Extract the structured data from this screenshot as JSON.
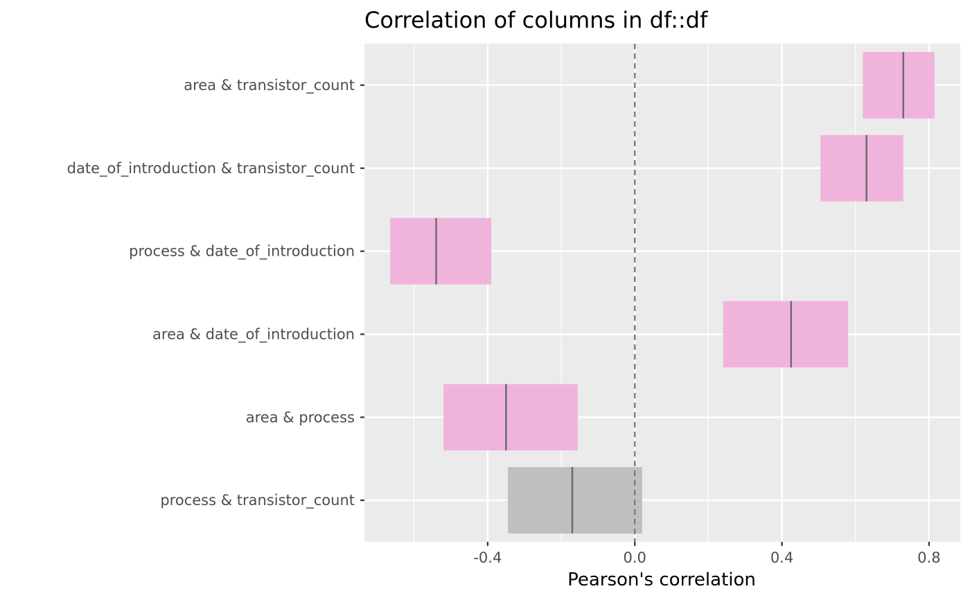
{
  "chart_data": {
    "type": "interval",
    "title": "Correlation of columns in df::df",
    "xlabel": "Pearson's correlation",
    "ylabel": "",
    "xlim": [
      -0.735,
      0.885
    ],
    "x_ticks": [
      -0.4,
      0.0,
      0.4,
      0.8
    ],
    "x_tick_labels": [
      "-0.4",
      "0.0",
      "0.4",
      "0.8"
    ],
    "reference_line": 0.0,
    "grid": true,
    "colors": {
      "panel": "#ebebeb",
      "grid": "#ffffff",
      "significant": "#f0b4dc",
      "not_significant": "#bfbfbf",
      "estimate_line": "#6b6b6b",
      "reference_line": "#708090"
    },
    "rows": [
      {
        "label": "area & transistor_count",
        "estimate": 0.73,
        "low": 0.62,
        "high": 0.815,
        "significant": true
      },
      {
        "label": "date_of_introduction & transistor_count",
        "estimate": 0.63,
        "low": 0.505,
        "high": 0.73,
        "significant": true
      },
      {
        "label": "process & date_of_introduction",
        "estimate": -0.54,
        "low": -0.665,
        "high": -0.39,
        "significant": true
      },
      {
        "label": "area & date_of_introduction",
        "estimate": 0.425,
        "low": 0.24,
        "high": 0.58,
        "significant": true
      },
      {
        "label": "area & process",
        "estimate": -0.35,
        "low": -0.52,
        "high": -0.155,
        "significant": true
      },
      {
        "label": "process & transistor_count",
        "estimate": -0.17,
        "low": -0.345,
        "high": 0.02,
        "significant": false
      }
    ]
  }
}
